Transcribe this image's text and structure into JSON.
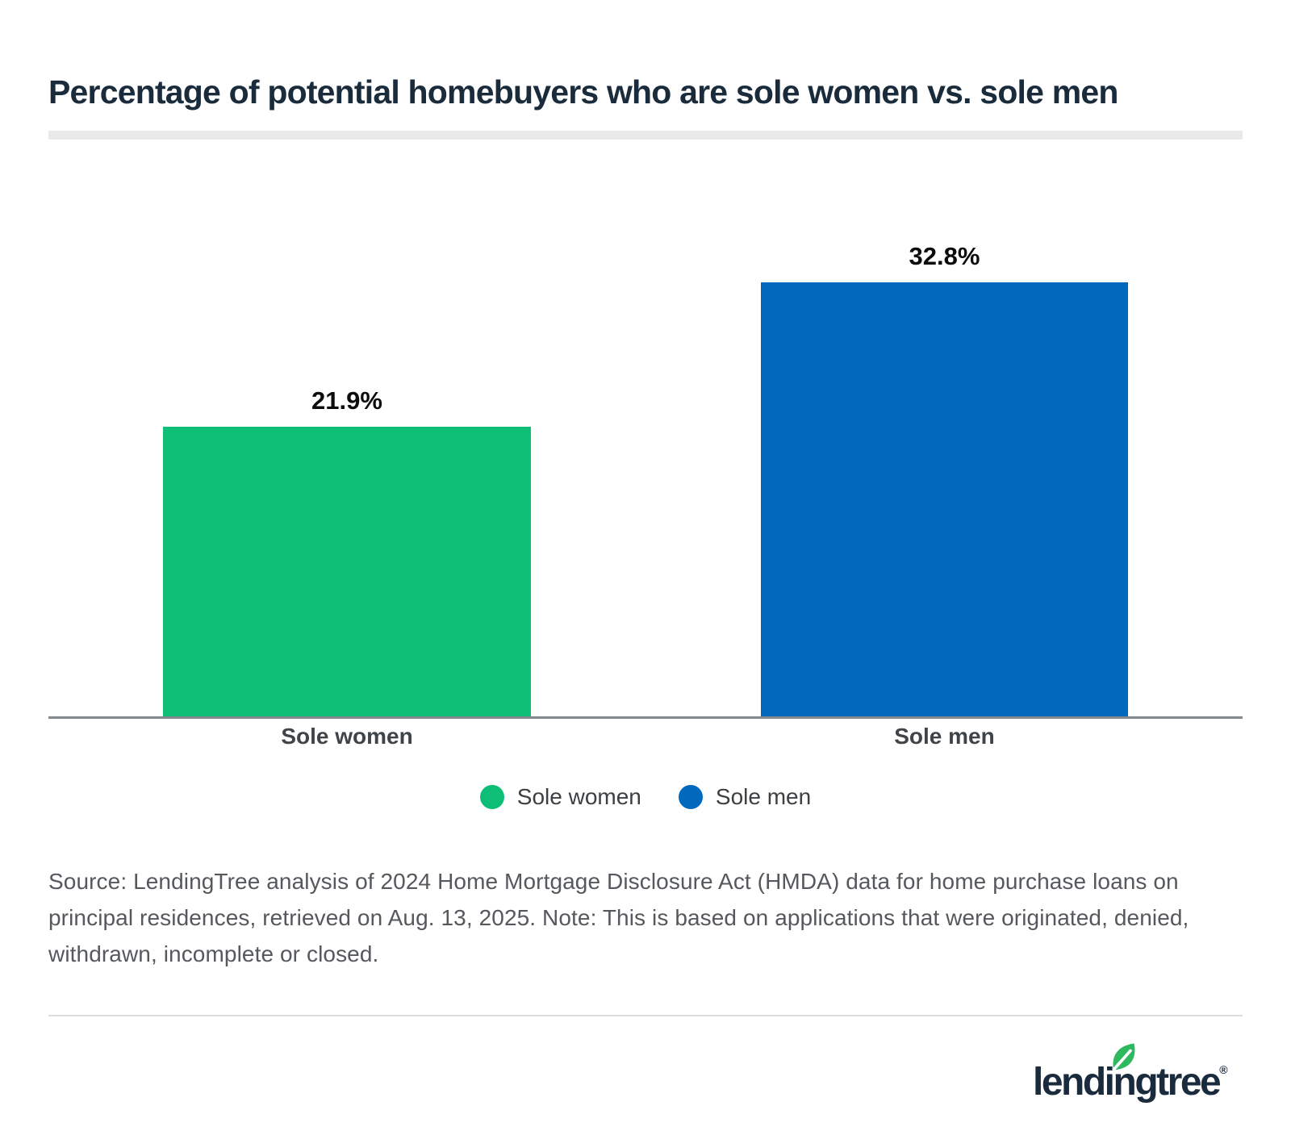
{
  "page": {
    "title": "Percentage of potential homebuyers who are sole women vs. sole men",
    "source_note": "Source: LendingTree analysis of 2024 Home Mortgage Disclosure Act (HMDA) data for home purchase loans on principal residences, retrieved on Aug. 13, 2025. Note: This is based on applications that were originated, denied, withdrawn, incomplete or closed.",
    "logo_text": "lendingtree",
    "logo_reg": "®"
  },
  "chart_data": {
    "type": "bar",
    "title": "Percentage of potential homebuyers who are sole women vs. sole men",
    "categories": [
      "Sole women",
      "Sole men"
    ],
    "values": [
      21.9,
      32.8
    ],
    "value_labels": [
      "21.9%",
      "32.8%"
    ],
    "series_colors": [
      "#0cbe76",
      "#0169bd"
    ],
    "legend": [
      {
        "label": "Sole women",
        "color": "#0cbe76"
      },
      {
        "label": "Sole men",
        "color": "#0169bd"
      }
    ],
    "legend_position": "bottom",
    "xlabel": "",
    "ylabel": "",
    "ylim": [
      0,
      35
    ],
    "grid": false,
    "y_axis_visible": false
  },
  "colors": {
    "title": "#1a2b3c",
    "axis_line": "#85888a",
    "category_label": "#3f4448",
    "value_label": "#0d0d0d",
    "source_text": "#55585c",
    "divider_thick": "#e9e9e9",
    "divider_thin": "#dcdcdc",
    "logo_navy": "#1b2b3e",
    "logo_leaf_green": "#2eb95f"
  }
}
